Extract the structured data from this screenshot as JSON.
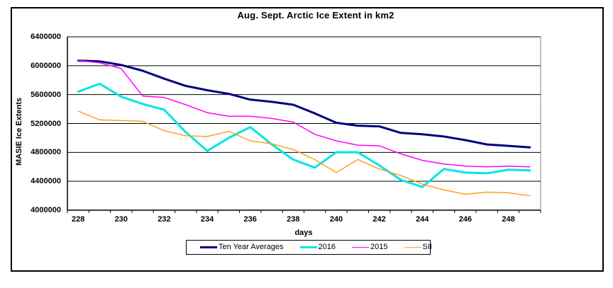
{
  "chart": {
    "title": "Aug. Sept. Arctic Ice Extent in km2",
    "y_axis_title": "MASIE Ice Extents",
    "x_axis_title": "days"
  },
  "chart_data": {
    "type": "line",
    "title": "Aug. Sept. Arctic Ice Extent in km2",
    "xlabel": "days",
    "ylabel": "MASIE Ice Extents",
    "x": [
      228,
      229,
      230,
      231,
      232,
      233,
      234,
      235,
      236,
      237,
      238,
      239,
      240,
      241,
      242,
      243,
      244,
      245,
      246,
      247,
      248,
      249
    ],
    "x_tick_labels": [
      "228",
      "230",
      "232",
      "234",
      "236",
      "238",
      "240",
      "242",
      "244",
      "246",
      "248"
    ],
    "y_ticks": [
      6400000,
      6000000,
      5600000,
      5200000,
      4800000,
      4400000,
      4000000
    ],
    "y_tick_labels": [
      "6400000",
      "6000000",
      "5600000",
      "5200000",
      "4800000",
      "4400000",
      "4000000"
    ],
    "ylim": [
      4000000,
      6400000
    ],
    "grid": "horizontal",
    "legend_position": "bottom",
    "series": [
      {
        "name": "Ten Year Averages",
        "color": "#000080",
        "width": 3,
        "values": [
          6070000,
          6060000,
          6010000,
          5930000,
          5820000,
          5720000,
          5660000,
          5610000,
          5530000,
          5500000,
          5460000,
          5340000,
          5210000,
          5170000,
          5160000,
          5070000,
          5050000,
          5020000,
          4970000,
          4910000,
          4890000,
          4870000
        ]
      },
      {
        "name": "2016",
        "color": "#00E5E5",
        "width": 3,
        "values": [
          5640000,
          5750000,
          5570000,
          5470000,
          5390000,
          5080000,
          4820000,
          5000000,
          5150000,
          4910000,
          4700000,
          4590000,
          4800000,
          4800000,
          4620000,
          4420000,
          4320000,
          4570000,
          4520000,
          4510000,
          4560000,
          4550000
        ]
      },
      {
        "name": "2015",
        "color": "#FF00FF",
        "width": 1.5,
        "values": [
          6070000,
          6040000,
          5960000,
          5580000,
          5560000,
          5460000,
          5350000,
          5300000,
          5300000,
          5270000,
          5220000,
          5050000,
          4960000,
          4900000,
          4890000,
          4780000,
          4690000,
          4640000,
          4610000,
          4600000,
          4610000,
          4600000
        ]
      },
      {
        "name": "SII",
        "color": "#FFA020",
        "width": 1.5,
        "values": [
          5370000,
          5250000,
          5240000,
          5230000,
          5100000,
          5030000,
          5020000,
          5090000,
          4960000,
          4920000,
          4840000,
          4700000,
          4520000,
          4700000,
          4570000,
          4480000,
          4360000,
          4280000,
          4220000,
          4250000,
          4240000,
          4200000
        ]
      }
    ],
    "colors": {
      "outer_border": "#000000",
      "plot_border": "#888888",
      "gridline": "#000000",
      "background": "#ffffff"
    }
  }
}
